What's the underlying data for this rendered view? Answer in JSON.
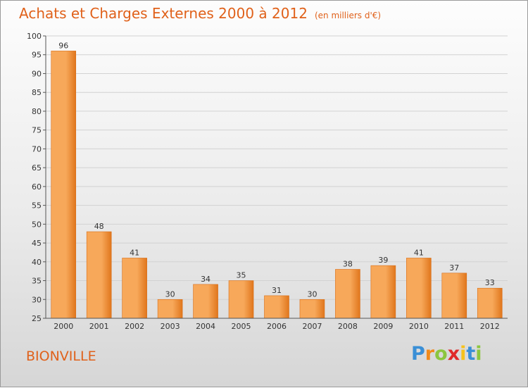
{
  "title": "Achats et Charges Externes 2000 à 2012",
  "subtitle": "(en milliers d'€)",
  "town": "BIONVILLE",
  "brand": {
    "letters": [
      "P",
      "r",
      "o",
      "x",
      "i",
      "t",
      "i"
    ],
    "colors": [
      "#3a8fd6",
      "#f08a1c",
      "#8cc63f",
      "#e02a2a",
      "#f6c21c",
      "#3a8fd6",
      "#8cc63f"
    ]
  },
  "colors": {
    "accent": "#e0611a",
    "bar_light": "#f7a85a",
    "bar_dark": "#e0761c"
  },
  "chart_data": {
    "type": "bar",
    "title": "Achats et Charges Externes 2000 à 2012",
    "subtitle": "(en milliers d'€)",
    "categories": [
      "2000",
      "2001",
      "2002",
      "2003",
      "2004",
      "2005",
      "2006",
      "2007",
      "2008",
      "2009",
      "2010",
      "2011",
      "2012"
    ],
    "values": [
      96,
      48,
      41,
      30,
      34,
      35,
      31,
      30,
      38,
      39,
      41,
      37,
      33
    ],
    "ylim": [
      25,
      100
    ],
    "yticks": [
      25,
      30,
      35,
      40,
      45,
      50,
      55,
      60,
      65,
      70,
      75,
      80,
      85,
      90,
      95,
      100
    ],
    "grid": true,
    "xlabel": "",
    "ylabel": ""
  }
}
